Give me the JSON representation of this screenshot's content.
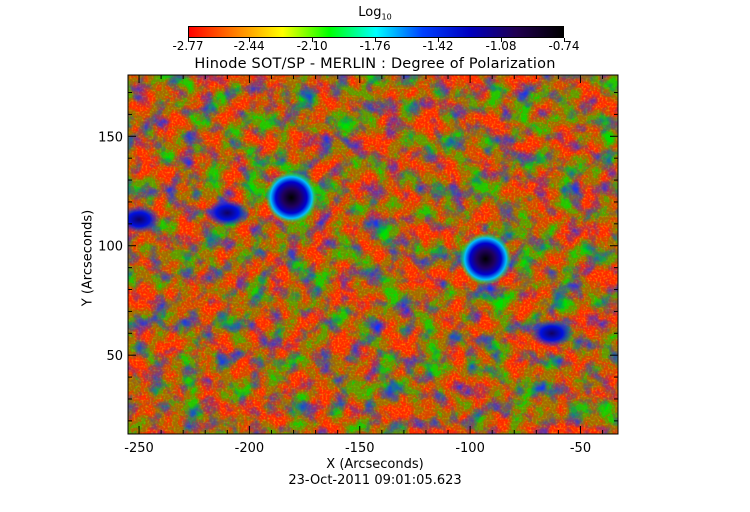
{
  "colorbar": {
    "label_main": "Log",
    "label_sub": "10",
    "tick_labels": [
      "-2.77",
      "-2.44",
      "-2.10",
      "-1.76",
      "-1.42",
      "-1.08",
      "-0.74"
    ],
    "range": [
      -2.77,
      -0.74
    ],
    "colormap": [
      "#ff0000",
      "#ff8000",
      "#ffff00",
      "#00ff00",
      "#00ffff",
      "#0040ff",
      "#0000c0",
      "#200050",
      "#000000"
    ]
  },
  "chart_data": {
    "type": "heatmap",
    "title": "Hinode SOT/SP - MERLIN : Degree of Polarization",
    "xlabel": "X (Arcseconds)",
    "ylabel": "Y (Arcseconds)",
    "xlim": [
      -255,
      -33
    ],
    "ylim": [
      14,
      178
    ],
    "x_ticks": [
      -250,
      -200,
      -150,
      -100,
      -50
    ],
    "y_ticks": [
      50,
      100,
      150
    ],
    "value_units": "log10 degree of polarization",
    "value_range": [
      -2.77,
      -0.74
    ],
    "features": [
      {
        "kind": "sunspot-pore",
        "x": -181,
        "y": 122,
        "value": -0.74
      },
      {
        "kind": "sunspot-pore",
        "x": -93,
        "y": 94,
        "value": -0.74
      },
      {
        "kind": "strong-field-patch",
        "x": -210,
        "y": 115,
        "value": -1.08
      },
      {
        "kind": "strong-field-patch",
        "x": -250,
        "y": 112,
        "value": -1.08
      },
      {
        "kind": "strong-field-patch",
        "x": -63,
        "y": 60,
        "value": -1.08
      }
    ]
  },
  "footer": {
    "timestamp": "23-Oct-2011 09:01:05.623"
  }
}
